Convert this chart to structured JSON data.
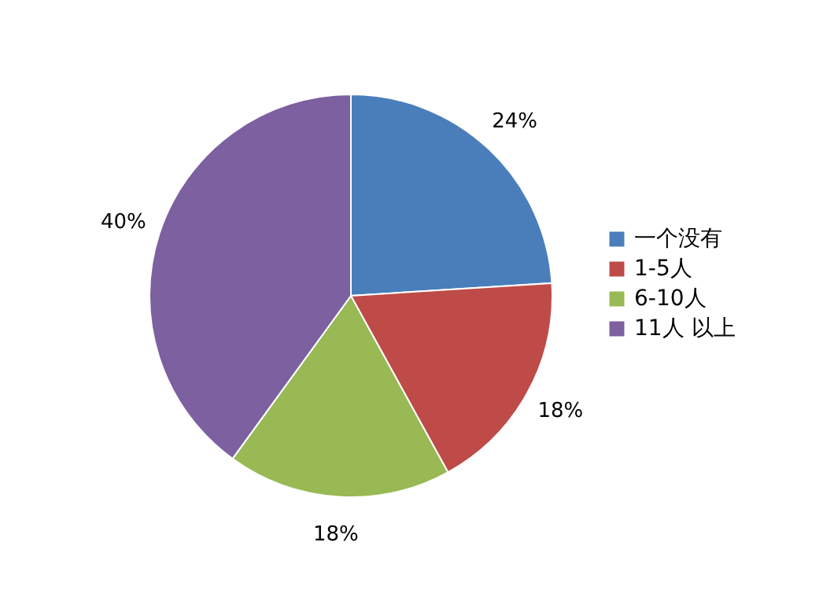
{
  "chart_data": {
    "type": "pie",
    "categories": [
      "一个没有",
      "1-5人",
      "6-10人",
      "11人 以上"
    ],
    "values": [
      24,
      18,
      18,
      40
    ],
    "colors": [
      "#4a7ebb",
      "#be4b48",
      "#98b954",
      "#7d60a0"
    ],
    "value_labels": [
      "24%",
      "18%",
      "18%",
      "40%"
    ],
    "legend": "right"
  }
}
